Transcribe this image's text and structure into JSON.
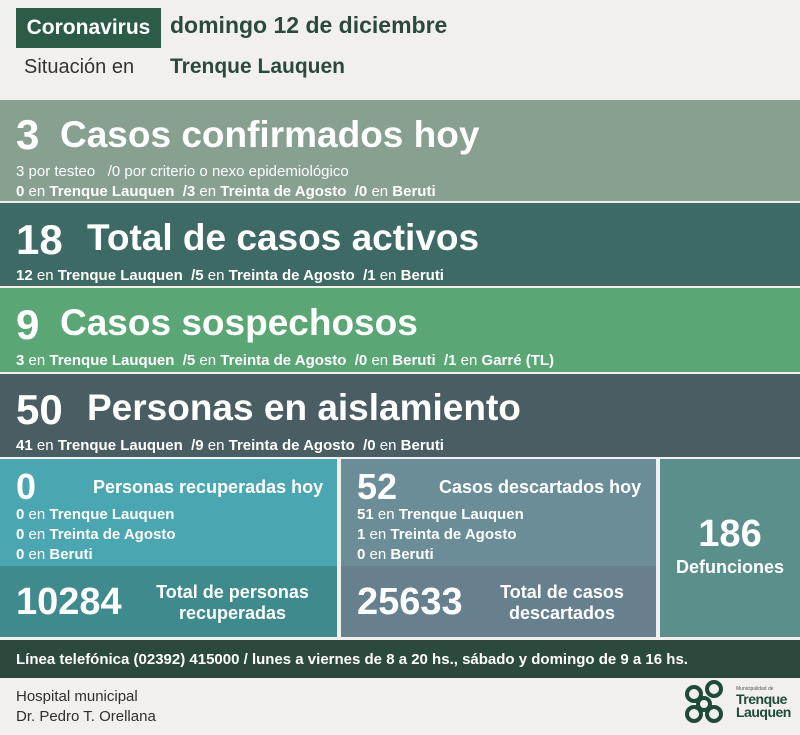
{
  "header": {
    "tag": "Coronavirus",
    "date": "domingo 12 de diciembre",
    "situation_label": "Situación en",
    "city": "Trenque Lauquen"
  },
  "confirmados": {
    "count": "3",
    "title": "Casos confirmados hoy",
    "line1_a": "3 por testeo",
    "line1_b": "/0 por criterio o nexo epidemiológico",
    "items": [
      {
        "n": "0",
        "in": "en",
        "place": "Trenque Lauquen"
      },
      {
        "n": "/3",
        "in": "en",
        "place": "Treinta de Agosto"
      },
      {
        "n": "/0",
        "in": "en",
        "place": "Beruti"
      }
    ]
  },
  "activos": {
    "count": "18",
    "title": "Total de casos activos",
    "items": [
      {
        "n": "12",
        "in": "en",
        "place": "Trenque Lauquen"
      },
      {
        "n": "/5",
        "in": "en",
        "place": "Treinta de Agosto"
      },
      {
        "n": "/1",
        "in": "en",
        "place": "Beruti"
      }
    ]
  },
  "sospechosos": {
    "count": "9",
    "title": "Casos sospechosos",
    "items": [
      {
        "n": "3",
        "in": "en",
        "place": "Trenque Lauquen"
      },
      {
        "n": "/5",
        "in": "en",
        "place": "Treinta de Agosto"
      },
      {
        "n": "/0",
        "in": "en",
        "place": "Beruti"
      },
      {
        "n": "/1",
        "in": "en",
        "place": "Garré (TL)"
      }
    ]
  },
  "aislamiento": {
    "count": "50",
    "title": "Personas en aislamiento",
    "items": [
      {
        "n": "41",
        "in": "en",
        "place": "Trenque Lauquen"
      },
      {
        "n": "/9",
        "in": "en",
        "place": "Treinta de Agosto"
      },
      {
        "n": "/0",
        "in": "en",
        "place": "Beruti"
      }
    ]
  },
  "recuperados": {
    "count": "0",
    "title": "Personas recuperadas hoy",
    "items": [
      {
        "n": "0",
        "in": "en",
        "place": "Trenque Lauquen"
      },
      {
        "n": "0",
        "in": "en",
        "place": "Treinta de Agosto"
      },
      {
        "n": "0",
        "in": "en",
        "place": "Beruti"
      }
    ],
    "total": "10284",
    "total_label_1": "Total de personas",
    "total_label_2": "recuperadas"
  },
  "descartados": {
    "count": "52",
    "title": "Casos descartados hoy",
    "items": [
      {
        "n": "51",
        "in": "en",
        "place": "Trenque Lauquen"
      },
      {
        "n": "1",
        "in": "en",
        "place": "Treinta de Agosto"
      },
      {
        "n": "0",
        "in": "en",
        "place": "Beruti"
      }
    ],
    "total": "25633",
    "total_label_1": "Total de casos",
    "total_label_2": "descartados"
  },
  "defunciones": {
    "count": "186",
    "label": "Defunciones"
  },
  "footer": {
    "phone_line": "Línea telefónica (02392) 415000 / lunes a viernes de 8 a 20 hs., sábado y domingo de 9 a 16 hs.",
    "hospital_1": "Hospital municipal",
    "hospital_2": "Dr. Pedro T. Orellana"
  },
  "logo": {
    "small": "Municipalidad de",
    "line1": "Trenque",
    "line2": "Lauquen"
  },
  "colors": {
    "confirmados": "#87a090",
    "activos": "#3e6a66",
    "sospechosos": "#5aa675",
    "aislamiento": "#4a5d63",
    "recuperados_top": "#4aa6b0",
    "recuperados_bottom": "#3e8a8c",
    "descartados_top": "#6a8d97",
    "descartados_bottom": "#66808e",
    "defunciones": "#5a8f8c",
    "footer": "#2c4a3b"
  }
}
